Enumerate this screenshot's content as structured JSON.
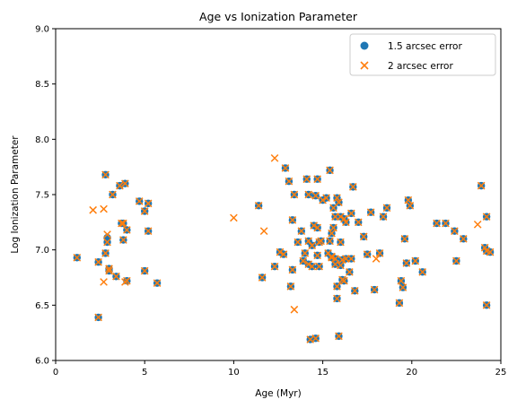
{
  "chart_data": {
    "type": "scatter",
    "title": "Age vs Ionization Parameter",
    "xlabel": "Age (Myr)",
    "ylabel": "Log Ionization Parameter",
    "xlim": [
      0,
      25
    ],
    "ylim": [
      6.0,
      9.0
    ],
    "xticks": [
      "0",
      "5",
      "10",
      "15",
      "20",
      "25"
    ],
    "yticks": [
      "6.0",
      "6.5",
      "7.0",
      "7.5",
      "8.0",
      "8.5",
      "9.0"
    ],
    "grid": false,
    "legend_position": "top-right",
    "series": [
      {
        "name": "1.5 arcsec error",
        "marker": "circle",
        "color": "#1f77b4",
        "points": [
          [
            1.2,
            6.93
          ],
          [
            2.4,
            6.89
          ],
          [
            2.4,
            6.39
          ],
          [
            2.8,
            7.68
          ],
          [
            2.8,
            6.97
          ],
          [
            2.9,
            7.11
          ],
          [
            2.9,
            7.07
          ],
          [
            3.0,
            6.83
          ],
          [
            3.0,
            6.81
          ],
          [
            3.2,
            7.5
          ],
          [
            3.4,
            6.76
          ],
          [
            3.6,
            7.58
          ],
          [
            3.7,
            7.24
          ],
          [
            3.8,
            7.24
          ],
          [
            3.8,
            7.09
          ],
          [
            3.9,
            7.6
          ],
          [
            4.0,
            7.18
          ],
          [
            4.0,
            6.72
          ],
          [
            4.7,
            7.44
          ],
          [
            5.0,
            7.35
          ],
          [
            5.0,
            6.81
          ],
          [
            5.2,
            7.42
          ],
          [
            5.2,
            7.17
          ],
          [
            5.7,
            6.7
          ],
          [
            11.4,
            7.4
          ],
          [
            11.6,
            6.75
          ],
          [
            12.3,
            6.85
          ],
          [
            12.6,
            6.98
          ],
          [
            12.8,
            6.96
          ],
          [
            12.9,
            7.74
          ],
          [
            13.1,
            7.62
          ],
          [
            13.2,
            6.67
          ],
          [
            13.3,
            7.27
          ],
          [
            13.3,
            6.82
          ],
          [
            13.4,
            7.5
          ],
          [
            13.6,
            7.07
          ],
          [
            13.8,
            7.17
          ],
          [
            13.9,
            6.9
          ],
          [
            14.0,
            6.97
          ],
          [
            14.1,
            7.64
          ],
          [
            14.2,
            7.5
          ],
          [
            14.2,
            7.08
          ],
          [
            14.2,
            6.87
          ],
          [
            14.3,
            6.19
          ],
          [
            14.4,
            7.04
          ],
          [
            14.4,
            6.85
          ],
          [
            14.5,
            7.22
          ],
          [
            14.6,
            7.49
          ],
          [
            14.6,
            6.2
          ],
          [
            14.7,
            7.64
          ],
          [
            14.7,
            7.2
          ],
          [
            14.7,
            6.95
          ],
          [
            14.8,
            6.85
          ],
          [
            14.8,
            7.07
          ],
          [
            14.9,
            7.08
          ],
          [
            15.0,
            7.45
          ],
          [
            15.2,
            7.47
          ],
          [
            15.3,
            6.97
          ],
          [
            15.4,
            7.72
          ],
          [
            15.4,
            7.08
          ],
          [
            15.5,
            7.15
          ],
          [
            15.5,
            6.94
          ],
          [
            15.5,
            6.93
          ],
          [
            15.6,
            7.38
          ],
          [
            15.6,
            7.2
          ],
          [
            15.7,
            7.3
          ],
          [
            15.7,
            6.92
          ],
          [
            15.7,
            6.87
          ],
          [
            15.8,
            7.47
          ],
          [
            15.8,
            6.67
          ],
          [
            15.8,
            6.56
          ],
          [
            15.9,
            7.43
          ],
          [
            15.9,
            6.22
          ],
          [
            16.0,
            7.3
          ],
          [
            16.0,
            7.07
          ],
          [
            16.0,
            6.86
          ],
          [
            16.1,
            6.91
          ],
          [
            16.1,
            6.73
          ],
          [
            16.2,
            7.28
          ],
          [
            16.2,
            6.72
          ],
          [
            16.3,
            7.25
          ],
          [
            16.3,
            6.92
          ],
          [
            16.5,
            6.8
          ],
          [
            16.6,
            7.33
          ],
          [
            16.6,
            6.92
          ],
          [
            16.7,
            7.57
          ],
          [
            16.8,
            6.63
          ],
          [
            17.0,
            7.25
          ],
          [
            17.3,
            7.12
          ],
          [
            17.5,
            6.96
          ],
          [
            17.7,
            7.34
          ],
          [
            17.9,
            6.64
          ],
          [
            18.2,
            6.97
          ],
          [
            18.4,
            7.3
          ],
          [
            18.6,
            7.38
          ],
          [
            19.3,
            6.52
          ],
          [
            19.4,
            6.72
          ],
          [
            19.5,
            6.66
          ],
          [
            19.6,
            7.1
          ],
          [
            19.7,
            6.88
          ],
          [
            19.8,
            7.45
          ],
          [
            19.9,
            7.4
          ],
          [
            20.2,
            6.9
          ],
          [
            20.6,
            6.8
          ],
          [
            21.4,
            7.24
          ],
          [
            21.9,
            7.24
          ],
          [
            22.4,
            7.17
          ],
          [
            22.5,
            6.9
          ],
          [
            22.9,
            7.1
          ],
          [
            23.9,
            7.58
          ],
          [
            24.1,
            7.02
          ],
          [
            24.2,
            7.3
          ],
          [
            24.2,
            6.99
          ],
          [
            24.2,
            6.5
          ],
          [
            24.4,
            6.98
          ]
        ]
      },
      {
        "name": "2 arcsec error",
        "marker": "x",
        "color": "#ff7f0e",
        "points": [
          [
            1.2,
            6.93
          ],
          [
            2.1,
            7.36
          ],
          [
            2.4,
            6.89
          ],
          [
            2.4,
            6.39
          ],
          [
            2.7,
            6.71
          ],
          [
            2.7,
            7.37
          ],
          [
            2.8,
            7.68
          ],
          [
            2.8,
            6.97
          ],
          [
            2.9,
            7.14
          ],
          [
            2.9,
            7.07
          ],
          [
            3.0,
            6.83
          ],
          [
            3.0,
            6.81
          ],
          [
            3.2,
            7.5
          ],
          [
            3.4,
            6.76
          ],
          [
            3.6,
            7.58
          ],
          [
            3.7,
            7.24
          ],
          [
            3.8,
            7.24
          ],
          [
            3.8,
            7.09
          ],
          [
            3.9,
            7.6
          ],
          [
            4.0,
            7.18
          ],
          [
            3.9,
            6.71
          ],
          [
            4.0,
            6.72
          ],
          [
            4.7,
            7.44
          ],
          [
            5.0,
            7.35
          ],
          [
            5.0,
            6.81
          ],
          [
            5.2,
            7.42
          ],
          [
            5.2,
            7.17
          ],
          [
            5.7,
            6.7
          ],
          [
            10.0,
            7.29
          ],
          [
            11.4,
            7.4
          ],
          [
            11.6,
            6.75
          ],
          [
            11.7,
            7.17
          ],
          [
            12.3,
            6.85
          ],
          [
            12.3,
            7.83
          ],
          [
            12.6,
            6.98
          ],
          [
            12.8,
            6.96
          ],
          [
            12.9,
            7.74
          ],
          [
            13.1,
            7.62
          ],
          [
            13.2,
            6.67
          ],
          [
            13.3,
            7.27
          ],
          [
            13.3,
            6.82
          ],
          [
            13.4,
            7.5
          ],
          [
            13.4,
            6.46
          ],
          [
            13.6,
            7.07
          ],
          [
            13.8,
            7.17
          ],
          [
            13.9,
            6.9
          ],
          [
            14.0,
            6.97
          ],
          [
            14.1,
            7.64
          ],
          [
            14.2,
            7.5
          ],
          [
            14.2,
            7.08
          ],
          [
            14.2,
            6.87
          ],
          [
            14.3,
            6.19
          ],
          [
            14.4,
            7.04
          ],
          [
            14.4,
            6.85
          ],
          [
            14.5,
            7.22
          ],
          [
            14.6,
            7.49
          ],
          [
            14.6,
            6.2
          ],
          [
            14.7,
            7.64
          ],
          [
            14.7,
            7.2
          ],
          [
            14.7,
            6.95
          ],
          [
            14.8,
            6.85
          ],
          [
            14.8,
            7.07
          ],
          [
            14.9,
            7.08
          ],
          [
            15.0,
            7.45
          ],
          [
            15.2,
            7.47
          ],
          [
            15.3,
            6.97
          ],
          [
            15.4,
            7.72
          ],
          [
            15.4,
            7.08
          ],
          [
            15.5,
            7.15
          ],
          [
            15.5,
            6.94
          ],
          [
            15.5,
            6.93
          ],
          [
            15.6,
            7.38
          ],
          [
            15.6,
            7.2
          ],
          [
            15.7,
            7.3
          ],
          [
            15.7,
            6.92
          ],
          [
            15.7,
            6.87
          ],
          [
            15.8,
            7.47
          ],
          [
            15.8,
            6.67
          ],
          [
            15.8,
            6.56
          ],
          [
            15.9,
            7.43
          ],
          [
            15.9,
            6.22
          ],
          [
            16.0,
            7.3
          ],
          [
            16.0,
            7.07
          ],
          [
            16.0,
            6.86
          ],
          [
            16.1,
            6.91
          ],
          [
            16.1,
            6.73
          ],
          [
            16.2,
            7.28
          ],
          [
            16.2,
            6.72
          ],
          [
            16.3,
            7.25
          ],
          [
            16.3,
            6.92
          ],
          [
            16.5,
            6.8
          ],
          [
            16.6,
            7.33
          ],
          [
            16.6,
            6.92
          ],
          [
            16.7,
            7.57
          ],
          [
            16.8,
            6.63
          ],
          [
            17.0,
            7.25
          ],
          [
            17.3,
            7.12
          ],
          [
            17.5,
            6.96
          ],
          [
            17.7,
            7.34
          ],
          [
            17.9,
            6.64
          ],
          [
            18.0,
            6.92
          ],
          [
            18.2,
            6.97
          ],
          [
            18.4,
            7.3
          ],
          [
            18.6,
            7.38
          ],
          [
            19.3,
            6.52
          ],
          [
            19.4,
            6.72
          ],
          [
            19.5,
            6.66
          ],
          [
            19.6,
            7.1
          ],
          [
            19.7,
            6.88
          ],
          [
            19.8,
            7.45
          ],
          [
            19.9,
            7.4
          ],
          [
            20.2,
            6.9
          ],
          [
            20.6,
            6.8
          ],
          [
            21.4,
            7.24
          ],
          [
            21.9,
            7.24
          ],
          [
            22.4,
            7.17
          ],
          [
            22.5,
            6.9
          ],
          [
            22.9,
            7.1
          ],
          [
            23.7,
            7.23
          ],
          [
            23.9,
            7.58
          ],
          [
            24.1,
            7.02
          ],
          [
            24.2,
            7.3
          ],
          [
            24.2,
            6.99
          ],
          [
            24.2,
            6.5
          ],
          [
            24.4,
            6.98
          ]
        ]
      }
    ]
  }
}
